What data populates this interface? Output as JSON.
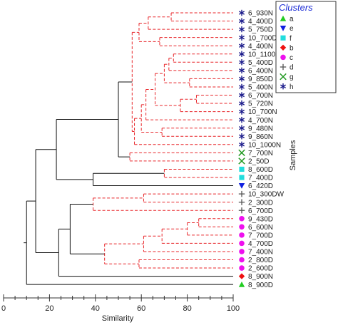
{
  "axis": {
    "xlabel": "Similarity",
    "ylabel": "Samples",
    "ticks": [
      0,
      20,
      40,
      60,
      80,
      100
    ]
  },
  "legend": {
    "title": "Clusters",
    "items": [
      {
        "key": "a",
        "label": "a",
        "marker": "triangle-up",
        "color": "#22cc22"
      },
      {
        "key": "e",
        "label": "e",
        "marker": "triangle-down",
        "color": "#1020e0"
      },
      {
        "key": "f",
        "label": "f",
        "marker": "square",
        "color": "#22dddd"
      },
      {
        "key": "b",
        "label": "b",
        "marker": "diamond",
        "color": "#ee1111"
      },
      {
        "key": "c",
        "label": "c",
        "marker": "circle",
        "color": "#ee11ee"
      },
      {
        "key": "d",
        "label": "d",
        "marker": "plus",
        "color": "#555555"
      },
      {
        "key": "g",
        "label": "g",
        "marker": "x",
        "color": "#229922"
      },
      {
        "key": "h",
        "label": "h",
        "marker": "asterisk",
        "color": "#1a1a8a"
      }
    ]
  },
  "samples": [
    {
      "label": "6_930N",
      "cluster": "h"
    },
    {
      "label": "4_400D",
      "cluster": "h"
    },
    {
      "label": "5_750D",
      "cluster": "h"
    },
    {
      "label": "10_700D",
      "cluster": "h"
    },
    {
      "label": "4_400N",
      "cluster": "h"
    },
    {
      "label": "10_1100D",
      "cluster": "h"
    },
    {
      "label": "5_400D",
      "cluster": "h"
    },
    {
      "label": "6_400N",
      "cluster": "h"
    },
    {
      "label": "9_850D",
      "cluster": "h"
    },
    {
      "label": "5_400N",
      "cluster": "h"
    },
    {
      "label": "6_700N",
      "cluster": "h"
    },
    {
      "label": "5_720N",
      "cluster": "h"
    },
    {
      "label": "10_700N",
      "cluster": "h"
    },
    {
      "label": "4_700N",
      "cluster": "h"
    },
    {
      "label": "9_480N",
      "cluster": "h"
    },
    {
      "label": "9_860N",
      "cluster": "h"
    },
    {
      "label": "10_1000N",
      "cluster": "h"
    },
    {
      "label": "7_700N",
      "cluster": "g"
    },
    {
      "label": "2_50D",
      "cluster": "g"
    },
    {
      "label": "8_600D",
      "cluster": "f"
    },
    {
      "label": "7_400D",
      "cluster": "f"
    },
    {
      "label": "6_420D",
      "cluster": "e"
    },
    {
      "label": "10_300DW",
      "cluster": "d"
    },
    {
      "label": "2_300D",
      "cluster": "d"
    },
    {
      "label": "6_700D",
      "cluster": "d"
    },
    {
      "label": "9_430D",
      "cluster": "c"
    },
    {
      "label": "6_600N",
      "cluster": "c"
    },
    {
      "label": "7_700D",
      "cluster": "c"
    },
    {
      "label": "4_700D",
      "cluster": "c"
    },
    {
      "label": "7_400N",
      "cluster": "c"
    },
    {
      "label": "2_800D",
      "cluster": "c"
    },
    {
      "label": "2_600D",
      "cluster": "c"
    },
    {
      "label": "8_900N",
      "cluster": "b"
    },
    {
      "label": "8_900D",
      "cluster": "a"
    }
  ],
  "merges": [
    {
      "id": "m1",
      "a": "L0",
      "b": "L1",
      "sim": 73,
      "style": "dashed"
    },
    {
      "id": "m2",
      "a": "m1",
      "b": "L2",
      "sim": 63,
      "style": "dashed"
    },
    {
      "id": "m3",
      "a": "L3",
      "b": "L4",
      "sim": 68,
      "style": "dashed"
    },
    {
      "id": "m4",
      "a": "m2",
      "b": "m3",
      "sim": 59,
      "style": "dashed"
    },
    {
      "id": "m5",
      "a": "L5",
      "b": "L6",
      "sim": 74,
      "style": "dashed"
    },
    {
      "id": "m6",
      "a": "m5",
      "b": "L7",
      "sim": 72,
      "style": "dashed"
    },
    {
      "id": "m7",
      "a": "L8",
      "b": "L9",
      "sim": 81,
      "style": "dashed"
    },
    {
      "id": "m8",
      "a": "m6",
      "b": "m7",
      "sim": 70,
      "style": "dashed"
    },
    {
      "id": "m9",
      "a": "L10",
      "b": "L11",
      "sim": 84,
      "style": "dashed"
    },
    {
      "id": "m10",
      "a": "m9",
      "b": "L12",
      "sim": 77,
      "style": "dashed"
    },
    {
      "id": "m11",
      "a": "m8",
      "b": "m10",
      "sim": 66,
      "style": "dashed"
    },
    {
      "id": "m12",
      "a": "m11",
      "b": "L13",
      "sim": 62,
      "style": "dashed"
    },
    {
      "id": "m13",
      "a": "L14",
      "b": "L15",
      "sim": 69,
      "style": "dashed"
    },
    {
      "id": "m14",
      "a": "m12",
      "b": "m13",
      "sim": 60,
      "style": "dashed"
    },
    {
      "id": "m15",
      "a": "m14",
      "b": "L16",
      "sim": 57,
      "style": "dashed"
    },
    {
      "id": "m16",
      "a": "m4",
      "b": "m15",
      "sim": 56,
      "style": "dashed"
    },
    {
      "id": "m17",
      "a": "L17",
      "b": "L18",
      "sim": 55,
      "style": "dashed"
    },
    {
      "id": "m18",
      "a": "m16",
      "b": "m17",
      "sim": 50,
      "style": "solid"
    },
    {
      "id": "m19",
      "a": "L19",
      "b": "L20",
      "sim": 70,
      "style": "dashed"
    },
    {
      "id": "m20",
      "a": "m19",
      "b": "L21",
      "sim": 39,
      "style": "solid"
    },
    {
      "id": "m21",
      "a": "m18",
      "b": "m20",
      "sim": 23,
      "style": "solid"
    },
    {
      "id": "m22",
      "a": "L22",
      "b": "L23",
      "sim": 61,
      "style": "dashed"
    },
    {
      "id": "m23",
      "a": "m22",
      "b": "L24",
      "sim": 39,
      "style": "dashed"
    },
    {
      "id": "m24",
      "a": "L25",
      "b": "L26",
      "sim": 85,
      "style": "dashed"
    },
    {
      "id": "m25",
      "a": "m24",
      "b": "L27",
      "sim": 80,
      "style": "dashed"
    },
    {
      "id": "m26",
      "a": "m25",
      "b": "L28",
      "sim": 69,
      "style": "dashed"
    },
    {
      "id": "m27",
      "a": "m26",
      "b": "L29",
      "sim": 61,
      "style": "dashed"
    },
    {
      "id": "m28",
      "a": "L30",
      "b": "L31",
      "sim": 59,
      "style": "dashed"
    },
    {
      "id": "m29",
      "a": "m27",
      "b": "m28",
      "sim": 44,
      "style": "dashed"
    },
    {
      "id": "m30",
      "a": "m23",
      "b": "m29",
      "sim": 29,
      "style": "solid"
    },
    {
      "id": "m31",
      "a": "m30",
      "b": "L32",
      "sim": 24,
      "style": "solid"
    },
    {
      "id": "m32",
      "a": "m21",
      "b": "m31",
      "sim": 14,
      "style": "solid"
    },
    {
      "id": "m33",
      "a": "m32",
      "b": "L33",
      "sim": 10,
      "style": "solid"
    }
  ]
}
